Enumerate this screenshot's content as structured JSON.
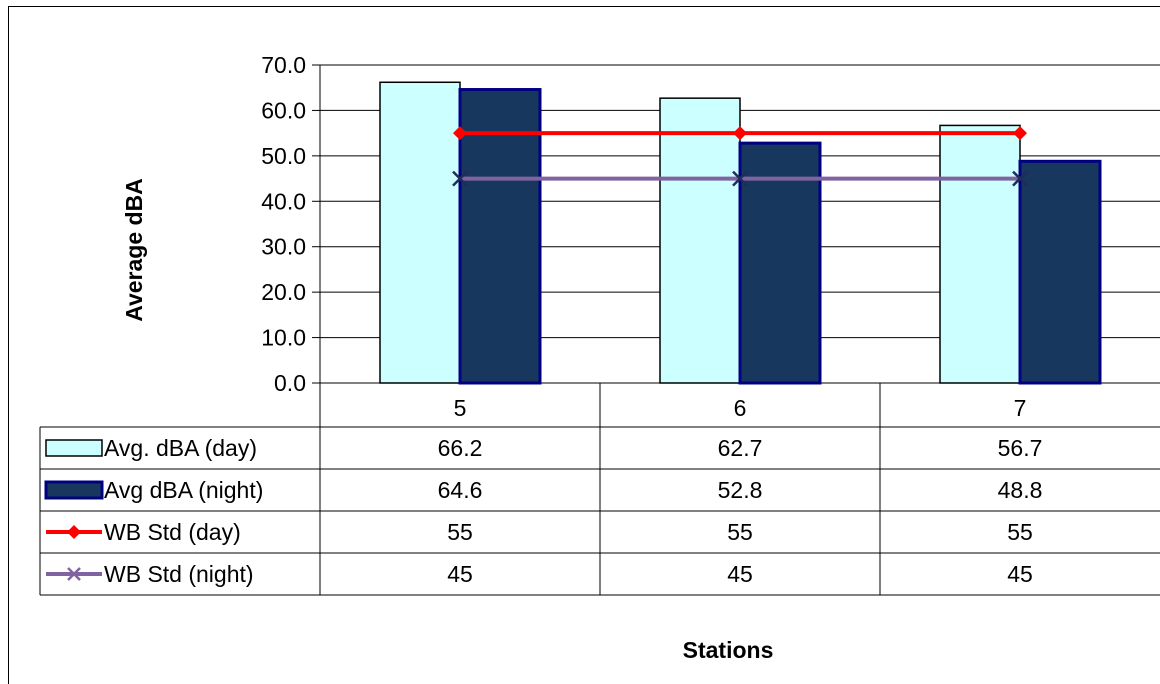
{
  "chart_data": {
    "type": "bar",
    "categories": [
      "5",
      "6",
      "7"
    ],
    "ylabel": "Average dBA",
    "xlabel": "Stations",
    "ylim": [
      0,
      70
    ],
    "yticks": [
      "0.0",
      "10.0",
      "20.0",
      "30.0",
      "40.0",
      "50.0",
      "60.0",
      "70.0"
    ],
    "grid": true,
    "legend": "data-table",
    "series": [
      {
        "name": "Avg. dBA (day)",
        "kind": "bar",
        "color": "#ccffff",
        "stroke": "#000000",
        "values": [
          66.2,
          62.7,
          56.7
        ],
        "labels": [
          "66.2",
          "62.7",
          "56.7"
        ]
      },
      {
        "name": "Avg dBA (night)",
        "kind": "bar",
        "color": "#17375e",
        "stroke": "#000080",
        "values": [
          64.6,
          52.8,
          48.8
        ],
        "labels": [
          "64.6",
          "52.8",
          "48.8"
        ]
      },
      {
        "name": "WB Std (day)",
        "kind": "line",
        "color": "#ff0000",
        "marker": "diamond",
        "values": [
          55,
          55,
          55
        ],
        "labels": [
          "55",
          "55",
          "55"
        ]
      },
      {
        "name": "WB Std (night)",
        "kind": "line",
        "color": "#8064a2",
        "marker": "x",
        "values": [
          45,
          45,
          45
        ],
        "labels": [
          "45",
          "45",
          "45"
        ]
      }
    ]
  }
}
